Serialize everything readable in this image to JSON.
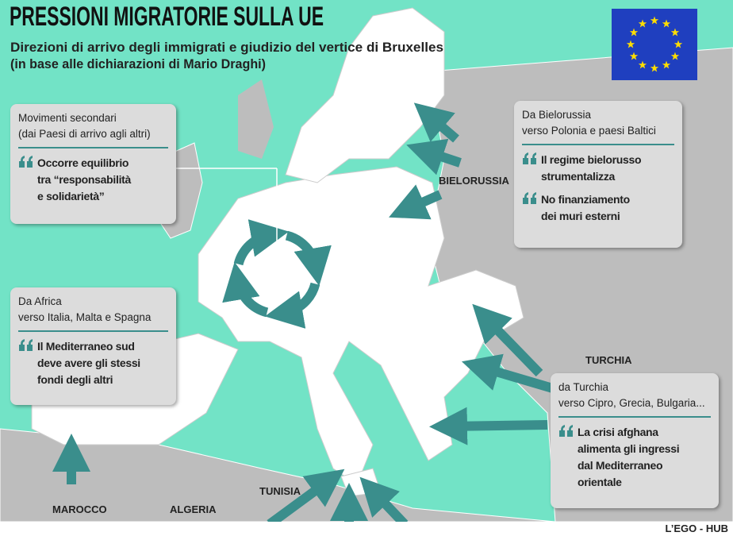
{
  "header": {
    "title": "PRESSIONI MIGRATORIE SULLA UE",
    "subtitle": [
      "Direzioni di arrivo degli immigrati e giudizio del vertice di Bruxelles",
      "(in base alle dichiarazioni di Mario Draghi)"
    ]
  },
  "boxes": [
    {
      "heading": [
        "Movimenti secondari",
        "(dai Paesi di arrivo agli altri)"
      ],
      "quotes": [
        [
          "Occorre equilibrio",
          "tra “responsabilità",
          "e solidarietà”"
        ]
      ]
    },
    {
      "heading": [
        "Da Bielorussia",
        "verso Polonia e paesi Baltici"
      ],
      "quotes": [
        [
          "Il regime bielorusso",
          "strumentalizza"
        ],
        [
          "No finanziamento",
          "dei muri esterni"
        ]
      ]
    },
    {
      "heading": [
        "Da Africa",
        "verso Italia, Malta e Spagna"
      ],
      "quotes": [
        [
          "Il Mediterraneo sud",
          "deve avere gli stessi",
          "fondi degli altri"
        ]
      ]
    },
    {
      "heading": [
        "da Turchia",
        "verso Cipro, Grecia, Bulgaria..."
      ],
      "quotes": [
        [
          "La crisi afghana",
          "alimenta gli ingressi",
          "dal Mediterraneo",
          "orientale"
        ]
      ]
    }
  ],
  "labels": [
    "BIELORUSSIA",
    "TURCHIA",
    "TUNISIA",
    "MAROCCO",
    "ALGERIA"
  ],
  "credit": "L’EGO - HUB"
}
